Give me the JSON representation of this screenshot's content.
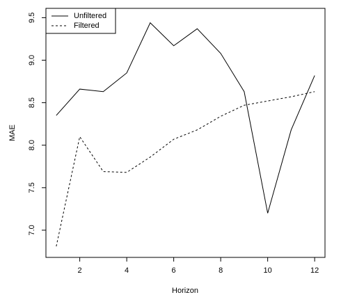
{
  "chart_data": {
    "type": "line",
    "x_label": "Horizon",
    "y_label": "MAE",
    "x": [
      1,
      2,
      3,
      4,
      5,
      6,
      7,
      8,
      9,
      10,
      11,
      12
    ],
    "series": [
      {
        "name": "Unfiltered",
        "color": "#000000",
        "line_style": "solid",
        "values": [
          8.35,
          8.66,
          8.63,
          8.85,
          9.44,
          9.17,
          9.37,
          9.08,
          8.63,
          7.2,
          8.18,
          8.82
        ]
      },
      {
        "name": "Filtered",
        "color": "#000000",
        "line_style": "dashed",
        "values": [
          6.81,
          8.1,
          7.69,
          7.68,
          7.86,
          8.07,
          8.18,
          8.34,
          8.47,
          8.52,
          8.57,
          8.63
        ]
      }
    ],
    "xlim": [
      0.56,
      12.44
    ],
    "xticks": [
      2,
      4,
      6,
      8,
      10,
      12
    ],
    "ylim": [
      6.68,
      9.61
    ],
    "yticks": [
      {
        "value": 7,
        "label": "7.0"
      },
      7.5,
      {
        "value": 8,
        "label": "8.0"
      },
      8.5,
      {
        "value": 9,
        "label": "9.0"
      },
      9.5
    ],
    "legend": "top-left"
  }
}
